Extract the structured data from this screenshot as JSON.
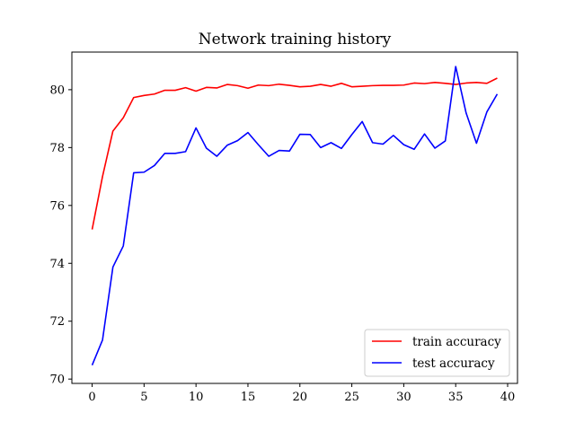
{
  "chart_data": {
    "type": "line",
    "title": "Network training history",
    "xlabel": "",
    "ylabel": "",
    "xlim": [
      -1.95,
      40.95
    ],
    "ylim": [
      69.85,
      81.3
    ],
    "xticks": [
      0,
      5,
      10,
      15,
      20,
      25,
      30,
      35,
      40
    ],
    "yticks": [
      70,
      72,
      74,
      76,
      78,
      80
    ],
    "grid": false,
    "legend": "bottom-right",
    "x": [
      0,
      1,
      2,
      3,
      4,
      5,
      6,
      7,
      8,
      9,
      10,
      11,
      12,
      13,
      14,
      15,
      16,
      17,
      18,
      19,
      20,
      21,
      22,
      23,
      24,
      25,
      26,
      27,
      28,
      29,
      30,
      31,
      32,
      33,
      34,
      35,
      36,
      37,
      38,
      39
    ],
    "series": [
      {
        "name": "train accuracy",
        "color": "#ff0000",
        "values": [
          75.17,
          77.0,
          78.57,
          79.03,
          79.73,
          79.8,
          79.85,
          79.98,
          79.98,
          80.07,
          79.95,
          80.08,
          80.06,
          80.18,
          80.14,
          80.05,
          80.16,
          80.14,
          80.19,
          80.15,
          80.1,
          80.12,
          80.18,
          80.12,
          80.22,
          80.1,
          80.12,
          80.14,
          80.15,
          80.15,
          80.16,
          80.23,
          80.21,
          80.25,
          80.22,
          80.18,
          80.23,
          80.25,
          80.22,
          80.4
        ]
      },
      {
        "name": "test accuracy",
        "color": "#0000ff",
        "values": [
          70.48,
          71.35,
          73.87,
          74.6,
          77.13,
          77.15,
          77.38,
          77.8,
          77.8,
          77.86,
          78.68,
          77.98,
          77.7,
          78.08,
          78.24,
          78.52,
          78.1,
          77.7,
          77.9,
          77.88,
          78.46,
          78.45,
          78.0,
          78.17,
          77.97,
          78.45,
          78.9,
          78.17,
          78.12,
          78.42,
          78.1,
          77.94,
          78.47,
          77.98,
          78.23,
          80.8,
          79.2,
          78.15,
          79.23,
          79.85
        ]
      }
    ]
  }
}
